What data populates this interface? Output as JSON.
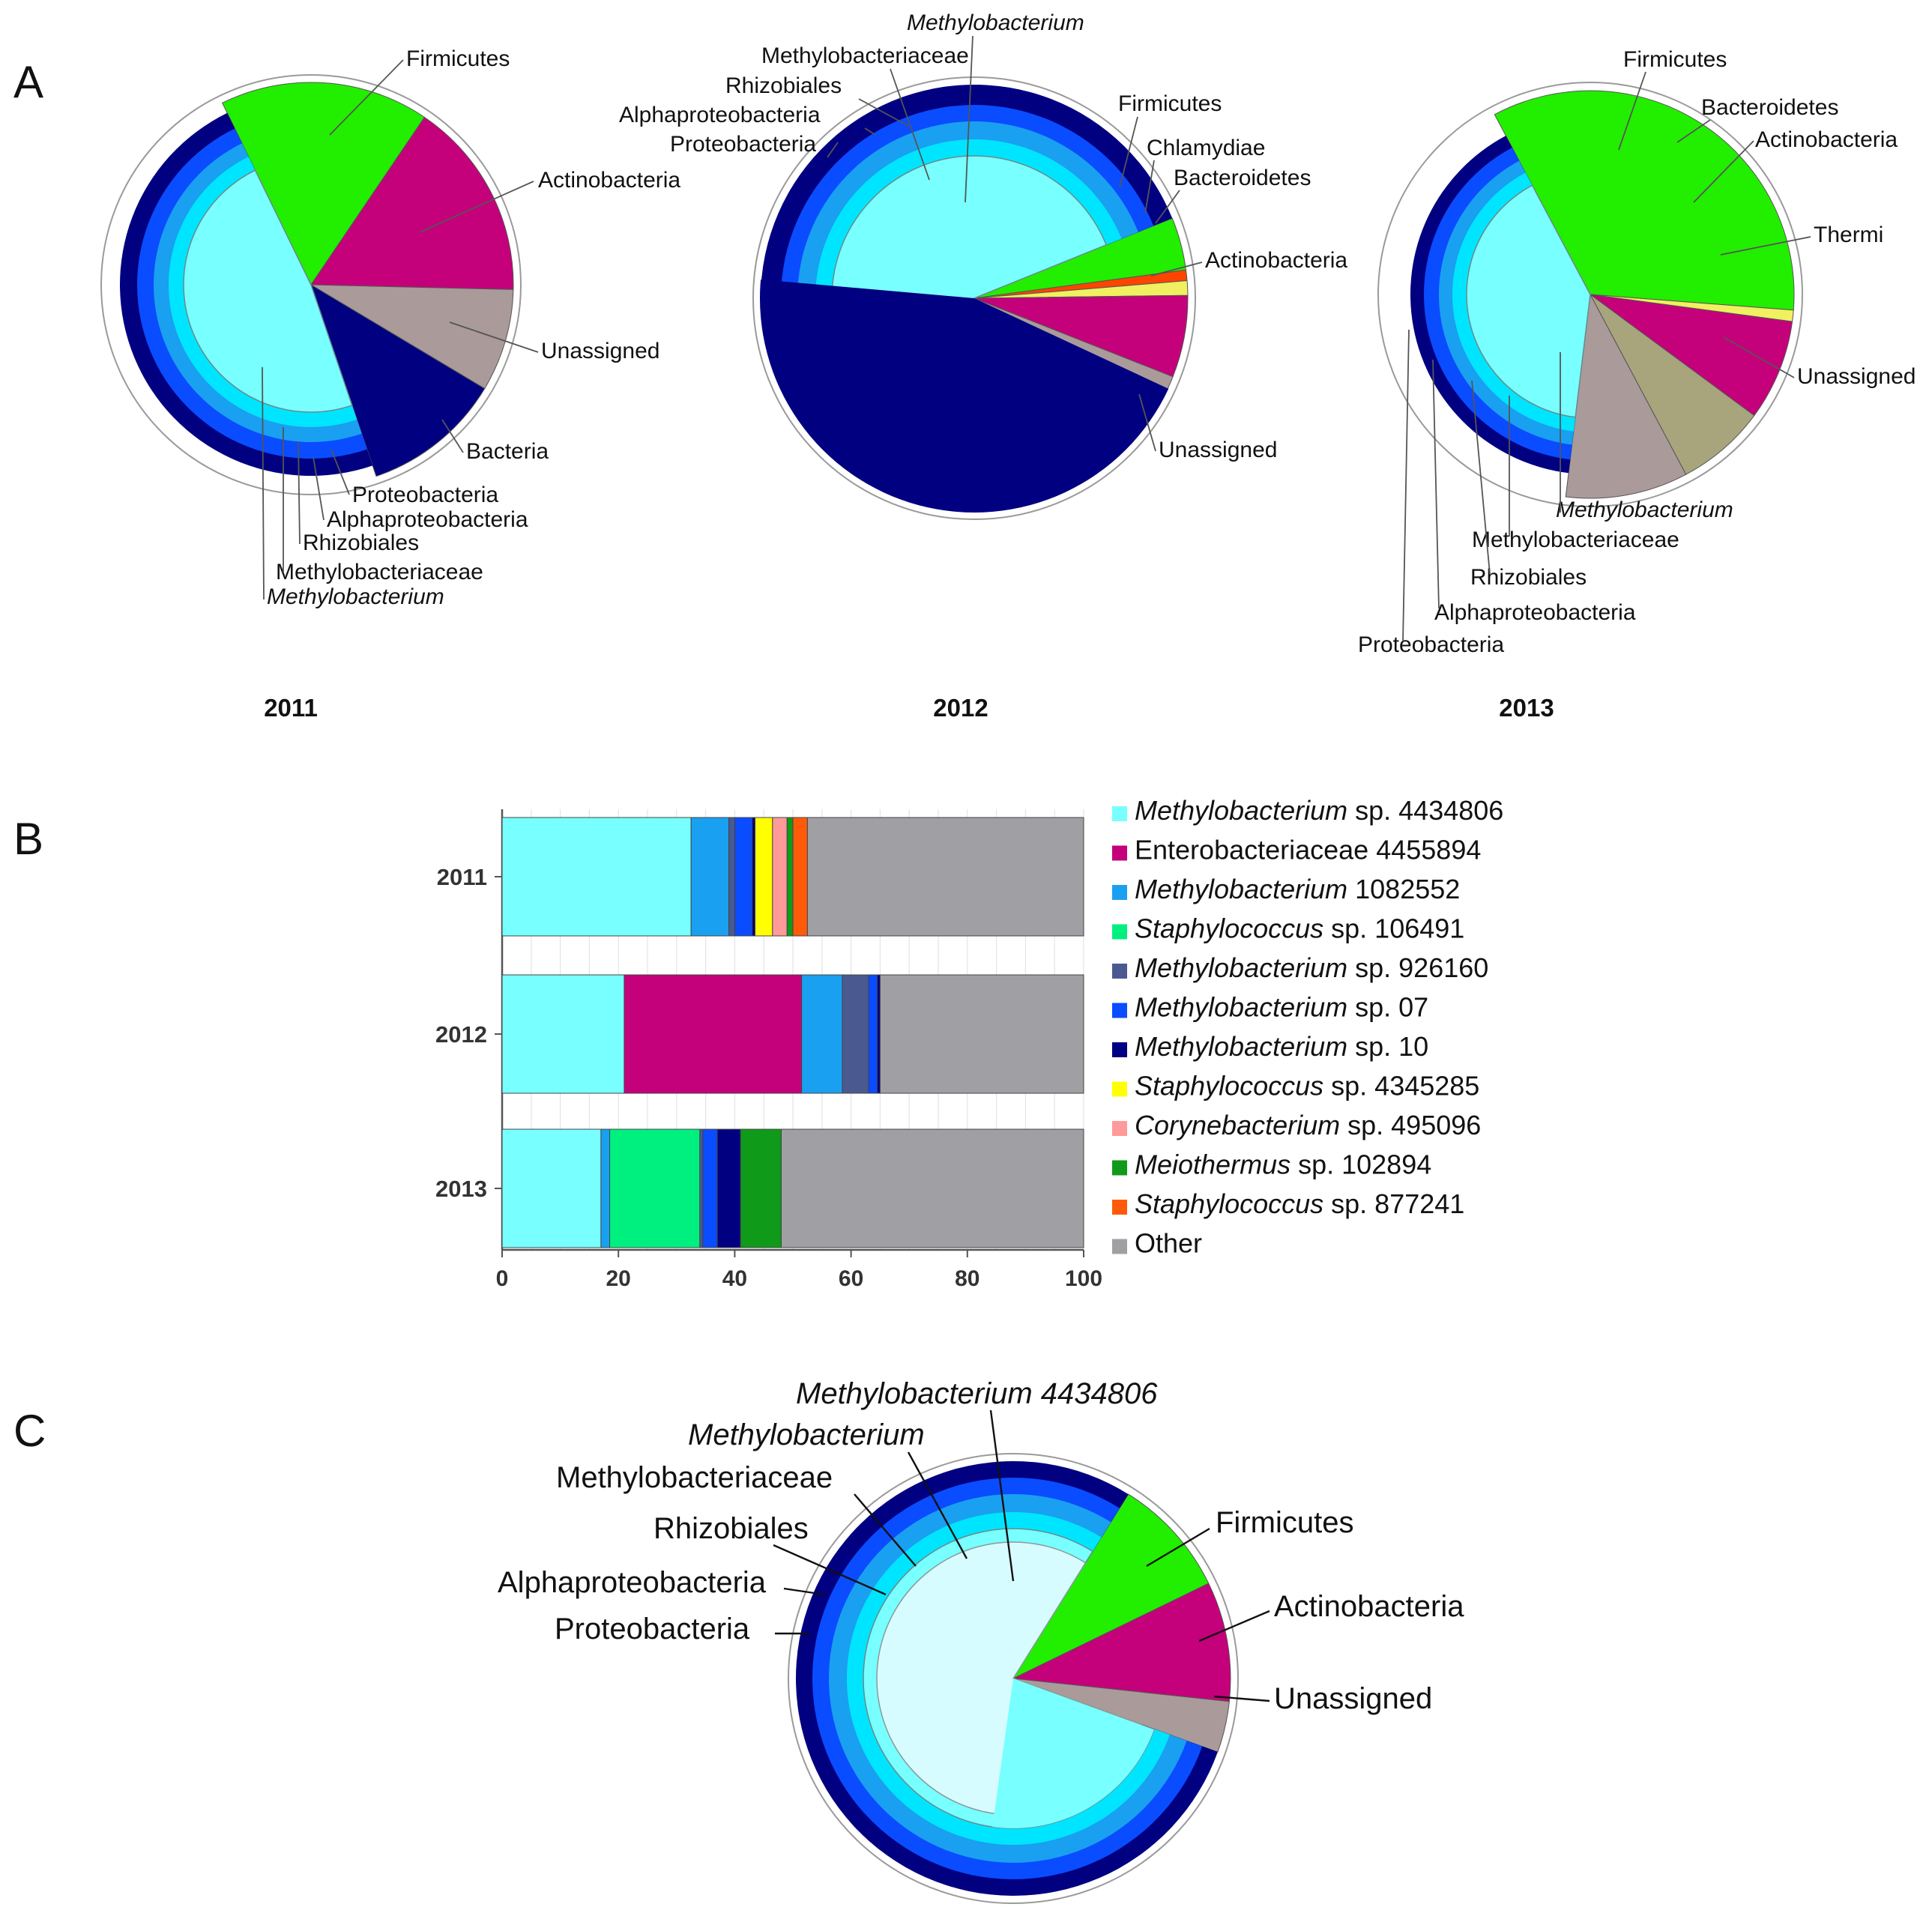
{
  "panels": {
    "A": "A",
    "B": "B",
    "C": "C"
  },
  "chart_data": [
    {
      "panel": "A",
      "type": "pie",
      "subtitle": "2011",
      "rings": [
        {
          "level": "Proteobacteria",
          "color": "#000080"
        },
        {
          "level": "Alphaproteobacteria",
          "color": "#0a4cff"
        },
        {
          "level": "Rhizobiales",
          "color": "#1aa0f0"
        },
        {
          "level": "Methylobacteriaceae",
          "color": "#00e5ff"
        },
        {
          "level": "Methylobacterium",
          "color": "#78ffff",
          "italic": true
        }
      ],
      "slices": [
        {
          "label": "Firmicutes",
          "share": 16.7,
          "color": "#22ee00"
        },
        {
          "label": "Actinobacteria",
          "share": 15.9,
          "color": "#c4007a"
        },
        {
          "label": "Unassigned",
          "share": 8.2,
          "color": "#aa9a9a"
        },
        {
          "label": "Bacteria",
          "share": 11.2,
          "color": "#000080"
        },
        {
          "label": "Proteobacteria",
          "share": 48.0,
          "color": "#000080",
          "group": "proteobacteria"
        }
      ],
      "labels": [
        "Firmicutes",
        "Actinobacteria",
        "Unassigned",
        "Bacteria",
        "Proteobacteria",
        "Alphaproteobacteria",
        "Rhizobiales",
        "Methylobacteriaceae",
        "Methylobacterium"
      ]
    },
    {
      "panel": "A",
      "type": "pie",
      "subtitle": "2012",
      "slices": [
        {
          "label": "Firmicutes",
          "share": 4.0,
          "color": "#22ee00"
        },
        {
          "label": "Chlamydiae",
          "share": 0.8,
          "color": "#ff4400"
        },
        {
          "label": "Bacteroidetes",
          "share": 1.1,
          "color": "#f0f060"
        },
        {
          "label": "Actinobacteria",
          "share": 6.2,
          "color": "#c4007a"
        },
        {
          "label": "Unassigned",
          "share": 9.9,
          "color": "#aa9a9a"
        },
        {
          "label": "Proteobacteria",
          "share": 78.0,
          "color": "#000080",
          "group": "proteobacteria"
        }
      ],
      "labels": [
        "Methylobacterium",
        "Methylobacteriaceae",
        "Rhizobiales",
        "Alphaproteobacteria",
        "Proteobacteria",
        "Firmicutes",
        "Chlamydiae",
        "Bacteroidetes",
        "Actinobacteria",
        "Unassigned"
      ]
    },
    {
      "panel": "A",
      "type": "pie",
      "subtitle": "2013",
      "slices": [
        {
          "label": "Firmicutes",
          "share": 34.0,
          "color": "#22ee00"
        },
        {
          "label": "Bacteroidetes",
          "share": 0.9,
          "color": "#f0f060"
        },
        {
          "label": "Actinobacteria",
          "share": 8.0,
          "color": "#c4007a"
        },
        {
          "label": "Thermi",
          "share": 7.1,
          "color": "#a8a47c"
        },
        {
          "label": "Unassigned",
          "share": 9.7,
          "color": "#aa9a9a"
        },
        {
          "label": "Proteobacteria",
          "share": 40.3,
          "color": "#000080",
          "group": "proteobacteria"
        }
      ],
      "labels": [
        "Firmicutes",
        "Bacteroidetes",
        "Actinobacteria",
        "Thermi",
        "Unassigned",
        "Methylobacterium",
        "Methylobacteriaceae",
        "Rhizobiales",
        "Alphaproteobacteria",
        "Proteobacteria"
      ]
    },
    {
      "panel": "B",
      "type": "bar",
      "orientation": "horizontal",
      "stacked": true,
      "categories": [
        "2011",
        "2012",
        "2013"
      ],
      "xlim": [
        0,
        100
      ],
      "xticks": [
        "0",
        "20",
        "40",
        "60",
        "80",
        "100"
      ],
      "legend_position": "right",
      "series": [
        {
          "name": "Methylobacterium sp. 4434806",
          "italic": "Methylobacterium",
          "rest": " sp. 4434806",
          "color": "#78ffff",
          "values": [
            32.5,
            21.0,
            17.0
          ]
        },
        {
          "name": "Enterobacteriaceae 4455894",
          "italic": "",
          "rest": "Enterobacteriaceae 4455894",
          "color": "#c4007a",
          "values": [
            0.0,
            30.5,
            0.0
          ]
        },
        {
          "name": "Methylobacterium 1082552",
          "italic": "Methylobacterium",
          "rest": " 1082552",
          "color": "#1aa0f0",
          "values": [
            6.5,
            7.0,
            1.5
          ]
        },
        {
          "name": "Staphylococcus sp. 106491",
          "italic": "Staphylococcus",
          "rest": " sp. 106491",
          "color": "#00f080",
          "values": [
            0.0,
            0.0,
            15.5
          ]
        },
        {
          "name": "Methylobacterium sp. 926160",
          "italic": "Methylobacterium",
          "rest": " sp. 926160",
          "color": "#4a5a90",
          "values": [
            1.0,
            4.5,
            0.5
          ]
        },
        {
          "name": "Methylobacterium sp. 07",
          "italic": "Methylobacterium",
          "rest": " sp. 07",
          "color": "#0a4cff",
          "values": [
            3.0,
            1.5,
            2.5
          ]
        },
        {
          "name": "Methylobacterium sp. 10",
          "italic": "Methylobacterium",
          "rest": " sp. 10",
          "color": "#000080",
          "values": [
            0.5,
            0.5,
            4.0
          ]
        },
        {
          "name": "Staphylococcus sp. 4345285",
          "italic": "Staphylococcus",
          "rest": " sp. 4345285",
          "color": "#ffff00",
          "values": [
            3.0,
            0.0,
            0.0
          ]
        },
        {
          "name": "Corynebacterium sp. 495096",
          "italic": "Corynebacterium",
          "rest": " sp. 495096",
          "color": "#ff9a9a",
          "values": [
            2.5,
            0.0,
            0.0
          ]
        },
        {
          "name": "Meiothermus sp. 102894",
          "italic": "Meiothermus",
          "rest": " sp. 102894",
          "color": "#0f9a1a",
          "values": [
            1.0,
            0.0,
            7.0
          ]
        },
        {
          "name": "Staphylococcus sp. 877241",
          "italic": "Staphylococcus",
          "rest": " sp. 877241",
          "color": "#ff5a0a",
          "values": [
            2.5,
            0.0,
            0.0
          ]
        },
        {
          "name": "Other",
          "italic": "",
          "rest": "Other",
          "color": "#a0a0a4",
          "values": [
            47.5,
            35.0,
            52.0
          ]
        }
      ]
    },
    {
      "panel": "C",
      "type": "pie",
      "slices": [
        {
          "label": "Firmicutes",
          "share": 8.9,
          "color": "#22ee00"
        },
        {
          "label": "Actinobacteria",
          "share": 8.9,
          "color": "#c4007a"
        },
        {
          "label": "Unassigned",
          "share": 3.8,
          "color": "#aa9a9a"
        },
        {
          "label": "Proteobacteria",
          "share": 78.4,
          "color": "#000080",
          "group": "proteobacteria"
        }
      ],
      "inner_slice": {
        "label": "Methylobacterium 4434806",
        "color": "#d6fcff"
      },
      "labels": [
        "Methylobacterium 4434806",
        "Methylobacterium",
        "Methylobacteriaceae",
        "Rhizobiales",
        "Alphaproteobacteria",
        "Proteobacteria",
        "Firmicutes",
        "Actinobacteria",
        "Unassigned"
      ]
    }
  ]
}
